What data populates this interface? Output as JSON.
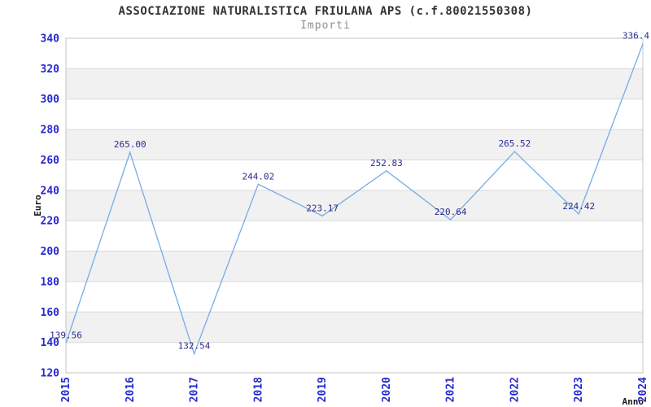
{
  "title": "ASSOCIAZIONE NATURALISTICA FRIULANA APS (c.f.80021550308)",
  "subtitle": "Importi",
  "chart_data": {
    "type": "line",
    "title": "ASSOCIAZIONE NATURALISTICA FRIULANA APS (c.f.80021550308)",
    "subtitle": "Importi",
    "xlabel": "Anno",
    "ylabel": "Euro",
    "x": [
      2015,
      2016,
      2017,
      2018,
      2019,
      2020,
      2021,
      2022,
      2023,
      2024
    ],
    "values": [
      139.56,
      265.0,
      132.54,
      244.02,
      223.17,
      252.83,
      220.64,
      265.52,
      224.42,
      336.4
    ],
    "point_labels": [
      "139.56",
      "265.00",
      "132.54",
      "244.02",
      "223.17",
      "252.83",
      "220.64",
      "265.52",
      "224.42",
      "336.4"
    ],
    "ylim": [
      120,
      340
    ],
    "ytick_step": 20,
    "ytick_labels": [
      "120",
      "140",
      "160",
      "180",
      "200",
      "220",
      "240",
      "260",
      "280",
      "300",
      "320",
      "340"
    ],
    "xtick_labels": [
      "2015",
      "2016",
      "2017",
      "2018",
      "2019",
      "2020",
      "2021",
      "2022",
      "2023",
      "2024"
    ],
    "xtick_rotation": 90,
    "legend": "none",
    "grid": "alternating horizontal bands with gridlines every 20",
    "colors": {
      "line": "#76ACE3",
      "tick_label": "#2828CF",
      "data_label": "#2A2A8F",
      "band": "#F1F1F1",
      "gridline": "#DADADA",
      "plot_border": "#C4C4C4",
      "axis_title": "#1A1A1A",
      "title": "#333333",
      "subtitle": "#8E8E8E",
      "background": "#FFFFFF"
    }
  }
}
